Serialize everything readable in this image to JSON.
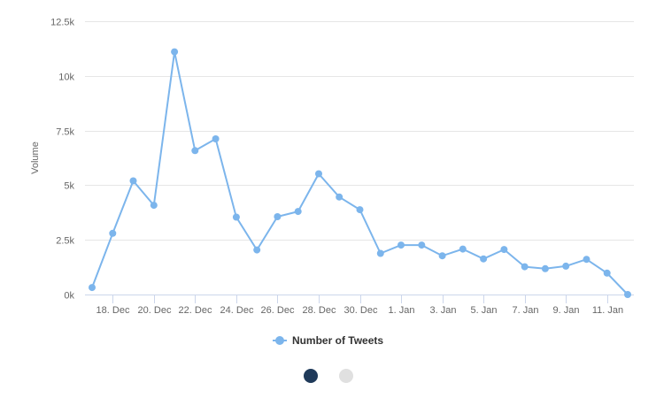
{
  "chart_data": {
    "type": "line",
    "ylabel": "Volume",
    "ylim": [
      0,
      12500
    ],
    "y_ticks": [
      {
        "value": 0,
        "label": "0k"
      },
      {
        "value": 2500,
        "label": "2.5k"
      },
      {
        "value": 5000,
        "label": "5k"
      },
      {
        "value": 7500,
        "label": "7.5k"
      },
      {
        "value": 10000,
        "label": "10k"
      },
      {
        "value": 12500,
        "label": "12.5k"
      }
    ],
    "x_ticks": [
      "18. Dec",
      "20. Dec",
      "22. Dec",
      "24. Dec",
      "26. Dec",
      "28. Dec",
      "30. Dec",
      "1. Jan",
      "3. Jan",
      "5. Jan",
      "7. Jan",
      "9. Jan",
      "11. Jan"
    ],
    "first_tick_day_index": 1,
    "tick_every_days": 2,
    "grid": true,
    "legend_position": "bottom-center",
    "series": [
      {
        "name": "Number of Tweets",
        "color": "#7cb5ec",
        "values": [
          320,
          2800,
          5200,
          4080,
          11100,
          6580,
          7120,
          3540,
          2040,
          3560,
          3800,
          5520,
          4460,
          3880,
          1880,
          2260,
          2260,
          1770,
          2080,
          1630,
          2060,
          1270,
          1180,
          1300,
          1610,
          980,
          0
        ]
      }
    ]
  },
  "pager": {
    "active_color": "#1f3a5a",
    "inactive_color": "#e0e0e0"
  }
}
